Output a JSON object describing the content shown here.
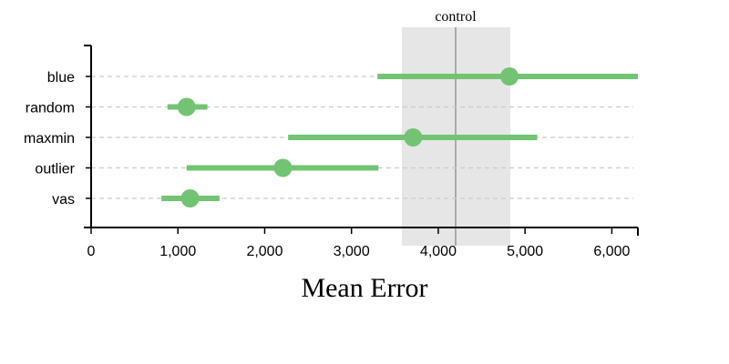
{
  "chart_data": {
    "type": "scatter",
    "subtype": "dot-with-error-bars",
    "xlabel": "Mean Error",
    "ylabel": "",
    "xlim": [
      0,
      6300
    ],
    "x_ticks": [
      0,
      1000,
      2000,
      3000,
      4000,
      5000,
      6000
    ],
    "x_tick_labels": [
      "0",
      "1,000",
      "2,000",
      "3,000",
      "4,000",
      "5,000",
      "6,000"
    ],
    "categories": [
      "blue",
      "random",
      "maxmin",
      "outlier",
      "vas"
    ],
    "series": [
      {
        "points": [
          {
            "category": "blue",
            "value": 4820,
            "low": 3300,
            "high": 6300
          },
          {
            "category": "random",
            "value": 1100,
            "low": 880,
            "high": 1340
          },
          {
            "category": "maxmin",
            "value": 3710,
            "low": 2270,
            "high": 5140
          },
          {
            "category": "outlier",
            "value": 2210,
            "low": 1100,
            "high": 3310
          },
          {
            "category": "vas",
            "value": 1140,
            "low": 810,
            "high": 1480
          }
        ]
      }
    ],
    "control": {
      "label": "control",
      "value": 4200,
      "low": 3580,
      "high": 4830
    },
    "grid": "horizontal-dashed",
    "legend": "none",
    "colors": {
      "point": "#72c472",
      "error_bar": "#72c472",
      "band": "#e6e6e6",
      "control_line": "#aaaaaa",
      "grid": "#cccccc",
      "axis": "#000000"
    }
  }
}
